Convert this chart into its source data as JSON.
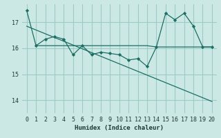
{
  "xlabel": "Humidex (Indice chaleur)",
  "background_color": "#cce8e4",
  "grid_color": "#99ccc6",
  "line_color": "#1a6e64",
  "xlim": [
    -0.5,
    20.5
  ],
  "ylim": [
    13.5,
    17.7
  ],
  "yticks": [
    14,
    15,
    16,
    17
  ],
  "xticks": [
    0,
    1,
    2,
    3,
    4,
    5,
    6,
    7,
    8,
    9,
    10,
    11,
    12,
    13,
    14,
    15,
    16,
    17,
    18,
    19,
    20
  ],
  "series1_x": [
    0,
    1,
    2,
    3,
    4,
    5,
    6,
    7,
    8,
    9,
    10,
    11,
    12,
    13,
    14,
    15,
    16,
    17,
    18,
    19,
    20
  ],
  "series1_y": [
    17.45,
    16.1,
    16.35,
    16.45,
    16.35,
    15.75,
    16.1,
    15.75,
    15.85,
    15.8,
    15.75,
    15.55,
    15.6,
    15.3,
    16.05,
    17.35,
    17.1,
    17.35,
    16.85,
    16.05,
    16.05
  ],
  "series2_x": [
    1,
    2,
    3,
    4,
    5,
    6,
    7,
    8,
    9,
    10,
    11,
    12,
    13,
    14,
    15,
    16,
    17,
    18,
    19,
    20
  ],
  "series2_y": [
    16.1,
    16.1,
    16.1,
    16.1,
    16.1,
    16.1,
    16.1,
    16.1,
    16.1,
    16.1,
    16.1,
    16.1,
    16.1,
    16.05,
    16.05,
    16.05,
    16.05,
    16.05,
    16.05,
    16.05
  ],
  "trend_x": [
    0,
    20
  ],
  "trend_y": [
    16.85,
    13.95
  ]
}
